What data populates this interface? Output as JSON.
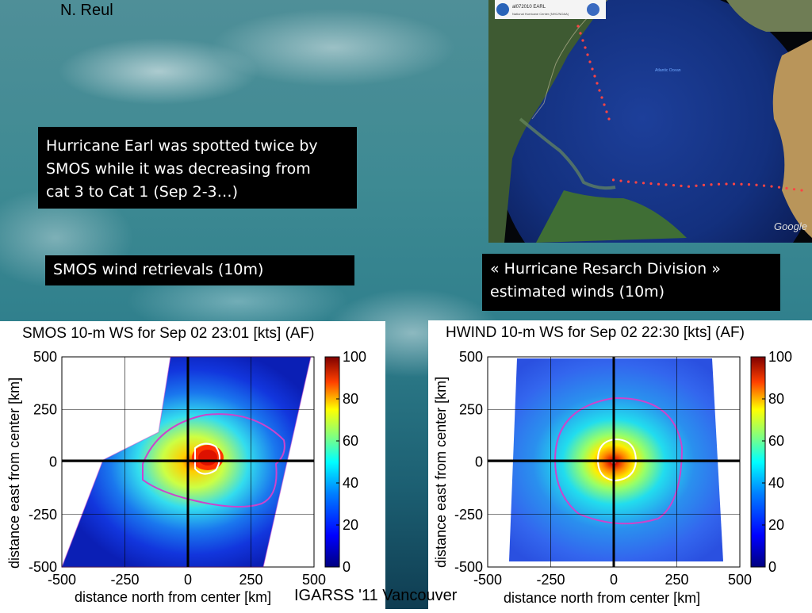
{
  "slide": {
    "author": "N. Reul",
    "footer": "IGARSS '11 Vancouver",
    "intro_text_lines": [
      "Hurricane Earl was spotted twice by",
      "SMOS while it was decreasing from",
      "cat 3 to Cat 1 (Sep 2-3…)"
    ],
    "smos_label": "SMOS wind retrievals (10m)",
    "hrd_label_lines": [
      "« Hurricane Resarch Division »",
      "estimated winds (10m)"
    ]
  },
  "globe_image": {
    "header_title": "al072010 EARL",
    "header_subtitle": "National Hurricane Center (NHC/NOAA)",
    "ocean_label": "Atlantic Ocean",
    "google_logo": "Google"
  },
  "colors": {
    "text_box_bg": "#000000",
    "text_box_fg": "#ffffff",
    "contour": "#cc44cc",
    "inner_contour": "#ffffff"
  },
  "chart_data": [
    {
      "type": "heatmap",
      "title": "SMOS 10-m WS for Sep 02 23:01 [kts] (AF)",
      "xlabel": "distance north from center [km]",
      "ylabel": "distance east from center [km]",
      "xlim": [
        -500,
        500
      ],
      "ylim": [
        -500,
        500
      ],
      "xticks": [
        -500,
        -250,
        0,
        250,
        500
      ],
      "yticks": [
        500,
        250,
        0,
        -250,
        -500
      ],
      "colorbar": {
        "min": 0,
        "max": 100,
        "ticks": [
          100,
          80,
          60,
          40,
          20,
          0
        ]
      },
      "grid": true,
      "max_wind_center": [
        70,
        0
      ]
    },
    {
      "type": "heatmap",
      "title": "HWIND 10-m WS for Sep 02 22:30 [kts] (AF)",
      "xlabel": "distance north from center [km]",
      "ylabel": "distance east from center [km]",
      "xlim": [
        -500,
        500
      ],
      "ylim": [
        -500,
        500
      ],
      "xticks": [
        -500,
        -250,
        0,
        250,
        500
      ],
      "yticks": [
        500,
        250,
        0,
        -250,
        -500
      ],
      "colorbar": {
        "min": 0,
        "max": 100,
        "ticks": [
          100,
          80,
          60,
          40,
          20,
          0
        ]
      },
      "grid": true,
      "max_wind_center": [
        0,
        0
      ]
    }
  ]
}
